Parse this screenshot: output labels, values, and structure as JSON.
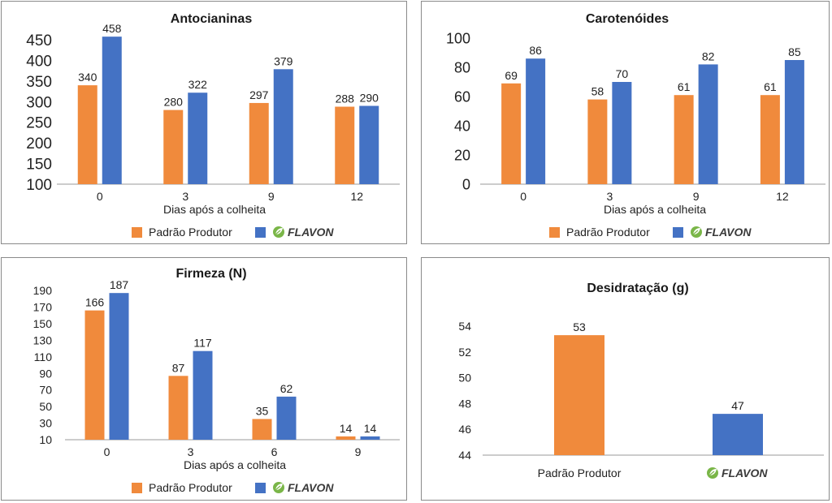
{
  "colors": {
    "padrao": "#f08a3c",
    "flavon": "#4472c4",
    "leaf": "#7ab648"
  },
  "legend": {
    "padrao_label": "Padrão Produtor",
    "flavon_label": "FLAVON"
  },
  "chart_data": [
    {
      "type": "bar",
      "title": "Antocianinas",
      "xlabel": "Dias após a colheita",
      "ylabel": "",
      "categories": [
        "0",
        "3",
        "9",
        "12"
      ],
      "series": [
        {
          "name": "Padrão Produtor",
          "values": [
            340,
            280,
            297,
            288
          ]
        },
        {
          "name": "FLAVON",
          "values": [
            458,
            322,
            379,
            290
          ]
        }
      ],
      "data_labels": [
        [
          "340",
          "280",
          "297",
          "288"
        ],
        [
          "458",
          "322",
          "379",
          "290"
        ]
      ],
      "yticks": [
        100,
        150,
        200,
        250,
        300,
        350,
        400,
        450
      ],
      "ylim": [
        100,
        480
      ],
      "grid": false,
      "legend_position": "bottom"
    },
    {
      "type": "bar",
      "title": "Carotenóides",
      "xlabel": "Dias após a colheita",
      "ylabel": "",
      "categories": [
        "0",
        "3",
        "9",
        "12"
      ],
      "series": [
        {
          "name": "Padrão Produtor",
          "values": [
            69,
            58,
            61,
            61
          ]
        },
        {
          "name": "FLAVON",
          "values": [
            86,
            70,
            82,
            85
          ]
        }
      ],
      "data_labels": [
        [
          "69",
          "58",
          "61",
          "61"
        ],
        [
          "86",
          "70",
          "82",
          "85"
        ]
      ],
      "yticks": [
        0,
        20,
        40,
        60,
        80,
        100
      ],
      "ylim": [
        0,
        100
      ],
      "grid": false,
      "legend_position": "bottom"
    },
    {
      "type": "bar",
      "title": "Firmeza (N)",
      "xlabel": "Dias após a colheita",
      "ylabel": "",
      "categories": [
        "0",
        "3",
        "6",
        "9"
      ],
      "series": [
        {
          "name": "Padrão Produtor",
          "values": [
            166,
            87,
            35,
            14
          ]
        },
        {
          "name": "FLAVON",
          "values": [
            187,
            117,
            62,
            14
          ]
        }
      ],
      "data_labels": [
        [
          "166",
          "87",
          "35",
          "14"
        ],
        [
          "187",
          "117",
          "62",
          "14"
        ]
      ],
      "yticks": [
        10,
        30,
        50,
        70,
        90,
        110,
        130,
        150,
        170,
        190
      ],
      "ylim": [
        10,
        195
      ],
      "grid": false,
      "legend_position": "bottom"
    },
    {
      "type": "bar",
      "title": "Desidratação (g)",
      "xlabel": "",
      "ylabel": "",
      "categories": [
        "Padrão Produtor",
        "FLAVON"
      ],
      "values": [
        53.3,
        47.2
      ],
      "data_labels": [
        "53",
        "47"
      ],
      "yticks": [
        44,
        46,
        48,
        50,
        52,
        54
      ],
      "ylim": [
        44,
        54
      ],
      "grid": false,
      "legend_position": "none"
    }
  ]
}
